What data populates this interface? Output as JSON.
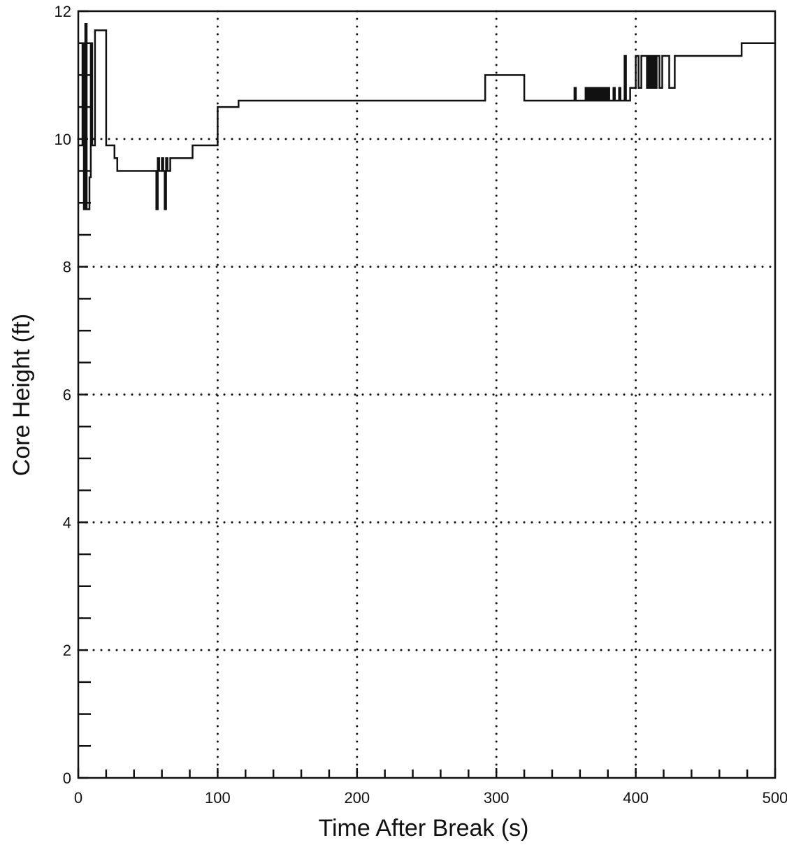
{
  "chart_data": {
    "type": "line",
    "title": "",
    "xlabel": "Time After Break (s)",
    "ylabel": "Core Height (ft)",
    "xlim": [
      0,
      500
    ],
    "ylim": [
      0,
      12
    ],
    "x_ticks": [
      0,
      100,
      200,
      300,
      400,
      500
    ],
    "y_ticks": [
      0,
      2,
      4,
      6,
      8,
      10,
      12
    ],
    "x_tick_labels": [
      "0",
      "100",
      "200",
      "300",
      "400",
      "500"
    ],
    "y_tick_labels": [
      "0",
      "2",
      "4",
      "6",
      "8",
      "10",
      "12"
    ],
    "grid": "dotted",
    "legend": "none",
    "line_color": "#111111",
    "series": [
      {
        "step": "post",
        "x": [
          0,
          3,
          4,
          5,
          6,
          8,
          9,
          10,
          12,
          15,
          20,
          24,
          26,
          28,
          30,
          40,
          50,
          56,
          57,
          58,
          60,
          61,
          62,
          63,
          64,
          66,
          70,
          80,
          82,
          90,
          100,
          103,
          105,
          115,
          117,
          120,
          150,
          200,
          250,
          292,
          294,
          300,
          320,
          322,
          330,
          340,
          356,
          357,
          358,
          364,
          365,
          366,
          367,
          368,
          369,
          370,
          371,
          372,
          373,
          374,
          375,
          376,
          377,
          378,
          379,
          380,
          381,
          382,
          384,
          385,
          386,
          388,
          389,
          390,
          392,
          393,
          394,
          396,
          400,
          401,
          402,
          404,
          406,
          408,
          409,
          410,
          411,
          412,
          413,
          414,
          415,
          416,
          417,
          419,
          420,
          421,
          424,
          425,
          428,
          430,
          440,
          450,
          460,
          476,
          478,
          490,
          500
        ],
        "y": [
          9.9,
          11.5,
          8.9,
          11.8,
          8.9,
          9.4,
          11.5,
          9.9,
          11.7,
          11.7,
          9.9,
          9.9,
          9.7,
          9.5,
          9.5,
          9.5,
          9.5,
          8.9,
          9.7,
          9.5,
          9.7,
          9.5,
          8.9,
          9.7,
          9.5,
          9.7,
          9.7,
          9.7,
          9.9,
          9.9,
          10.5,
          10.5,
          10.5,
          10.6,
          10.6,
          10.6,
          10.6,
          10.6,
          10.6,
          11.0,
          11.0,
          11.0,
          10.6,
          10.6,
          10.6,
          10.6,
          10.8,
          10.6,
          10.6,
          10.8,
          10.6,
          10.8,
          10.6,
          10.8,
          10.6,
          10.8,
          10.6,
          10.8,
          10.6,
          10.8,
          10.6,
          10.8,
          10.6,
          10.8,
          10.6,
          10.8,
          10.6,
          10.6,
          10.8,
          10.6,
          10.6,
          10.8,
          10.6,
          10.6,
          11.3,
          10.6,
          10.6,
          10.8,
          11.3,
          11.3,
          10.8,
          11.3,
          11.3,
          10.8,
          11.3,
          10.8,
          11.3,
          10.8,
          11.3,
          10.8,
          11.3,
          11.3,
          10.8,
          11.3,
          11.3,
          11.3,
          10.8,
          10.8,
          11.3,
          11.3,
          11.3,
          11.3,
          11.3,
          11.5,
          11.5,
          11.5,
          11.5
        ]
      }
    ]
  }
}
